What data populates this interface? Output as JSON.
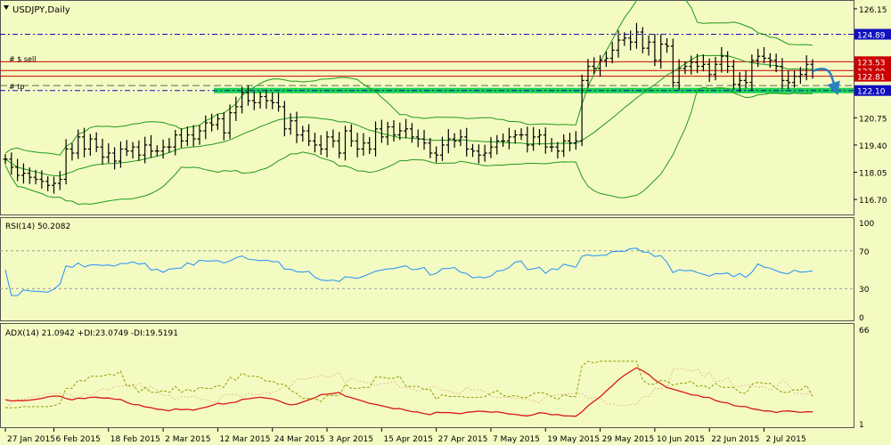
{
  "window": {
    "title": "USDJPY,Daily",
    "menu_icon": "triangle-down-icon"
  },
  "colors": {
    "background": "#f4fbc2",
    "bars": "#000000",
    "bands": "#1f9a1f",
    "rsi": "#1e90ff",
    "adx": "#d81818",
    "plus_di": "#8aa000",
    "minus_di": "#e6b89a",
    "sell_line": "#cc0000",
    "support": "#00cc44",
    "blue_line": "#1010c0",
    "arrow": "#2a7fc0"
  },
  "annotations": {
    "sell_label": "#          $ sell",
    "tp_label": "#          tp",
    "arrow_icon": "curved-arrow-down-icon"
  },
  "chart_data": [
    {
      "type": "candlestick",
      "title": "USDJPY,Daily",
      "ylim": [
        116.0,
        126.5
      ],
      "y_ticks": [
        "126.15",
        "124.89",
        "123.53",
        "123.09",
        "122.81",
        "122.10",
        "120.75",
        "119.40",
        "118.05",
        "116.70"
      ],
      "x_ticks": [
        "27 Jan 2015",
        "6 Feb 2015",
        "18 Feb 2015",
        "2 Mar 2015",
        "12 Mar 2015",
        "24 Mar 2015",
        "3 Apr 2015",
        "15 Apr 2015",
        "27 Apr 2015",
        "7 May 2015",
        "19 May 2015",
        "29 May 2015",
        "10 Jun 2015",
        "22 Jun 2015",
        "2 Jul 2015"
      ],
      "levels": [
        {
          "value": 124.89,
          "label": "124.89",
          "style": "dashdot-blue"
        },
        {
          "value": 123.53,
          "label": "123.53",
          "style": "sell"
        },
        {
          "value": 123.09,
          "label": "123.09",
          "style": "red"
        },
        {
          "value": 122.81,
          "label": "122.81",
          "style": "red"
        },
        {
          "value": 122.1,
          "label": "122.10",
          "style": "support"
        }
      ],
      "close": [
        118.7,
        118.3,
        117.9,
        118.0,
        117.8,
        117.7,
        117.6,
        117.4,
        117.5,
        117.7,
        119.2,
        119.0,
        119.8,
        119.2,
        119.7,
        119.3,
        118.8,
        119.0,
        118.6,
        119.2,
        119.1,
        119.3,
        118.9,
        119.4,
        119.1,
        119.1,
        119.3,
        119.3,
        119.9,
        119.6,
        119.9,
        119.7,
        120.1,
        120.5,
        120.4,
        120.7,
        120.0,
        121.0,
        121.3,
        122.0,
        121.6,
        121.5,
        121.8,
        121.6,
        121.5,
        121.3,
        120.2,
        120.6,
        119.9,
        120.1,
        119.6,
        119.4,
        119.2,
        119.8,
        119.6,
        119.0,
        120.1,
        119.6,
        119.2,
        119.5,
        119.2,
        120.2,
        119.8,
        120.3,
        119.9,
        120.1,
        120.2,
        119.8,
        119.7,
        119.5,
        119.0,
        118.9,
        119.4,
        119.7,
        119.6,
        119.8,
        119.2,
        119.1,
        118.9,
        119.0,
        119.3,
        119.6,
        119.6,
        119.8,
        119.9,
        119.9,
        119.4,
        119.8,
        119.9,
        119.3,
        119.3,
        119.1,
        119.6,
        119.5,
        119.6,
        122.6,
        123.3,
        123.2,
        123.6,
        123.7,
        124.1,
        124.6,
        124.7,
        124.5,
        125.0,
        124.2,
        124.5,
        123.6,
        124.4,
        124.3,
        122.5,
        123.2,
        123.3,
        123.5,
        123.3,
        123.4,
        122.9,
        123.4,
        123.8,
        123.3,
        122.4,
        122.6,
        122.5,
        123.6,
        123.8,
        123.7,
        123.6,
        123.3,
        122.6,
        122.5,
        122.8,
        122.9,
        123.4,
        123.1
      ],
      "series": [
        {
          "name": "RSI(14)",
          "panel": "rsi",
          "current": "50.2082",
          "ylim": [
            0,
            100
          ],
          "ticks": [
            "100",
            "70",
            "30",
            "0"
          ]
        },
        {
          "name": "ADX(14)",
          "panel": "adx",
          "current": "21.0942",
          "ticks": [
            "66",
            "1"
          ]
        },
        {
          "name": "+DI",
          "panel": "adx",
          "current": "23.0749"
        },
        {
          "name": "-DI",
          "panel": "adx",
          "current": "19.5191"
        }
      ]
    }
  ]
}
